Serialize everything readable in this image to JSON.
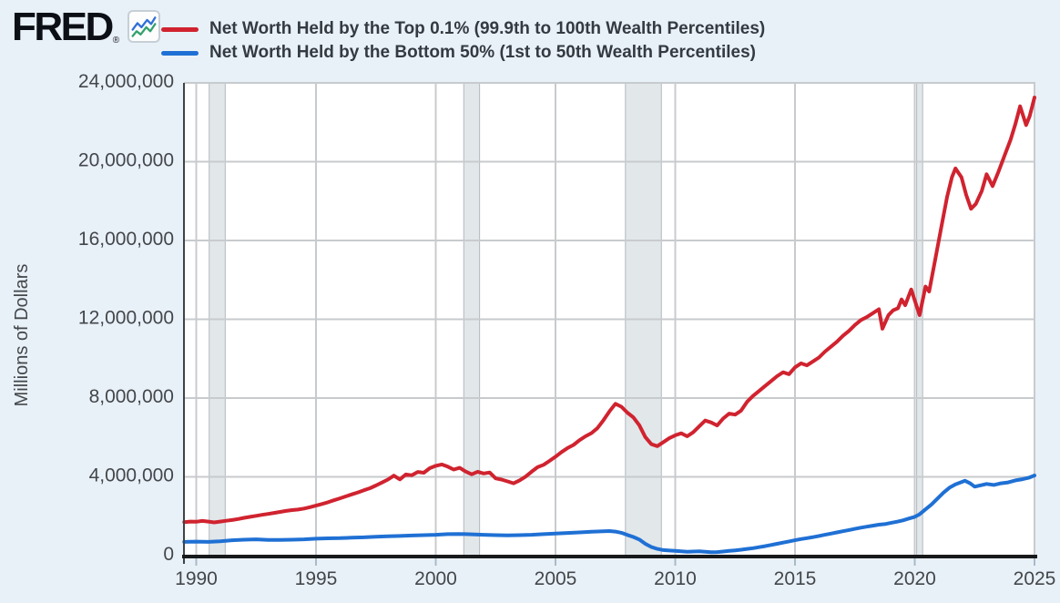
{
  "brand": {
    "name": "FRED",
    "registered": "®"
  },
  "legend": [
    {
      "id": "top_0_1",
      "label": "Net Worth Held by the Top 0.1% (99.9th to 100th Wealth Percentiles)",
      "color": "#d0232f"
    },
    {
      "id": "bottom_50",
      "label": "Net Worth Held by the Bottom 50% (1st to 50th Wealth Percentiles)",
      "color": "#1f70d4"
    }
  ],
  "colors": {
    "background": "#e9f1f8",
    "plot_background": "#ffffff",
    "gridline": "#c8cbce",
    "recession_band": "#e2e7ea",
    "recession_edge": "#b2b8be",
    "x_axis": "#17191b",
    "y_axis": "#3f4347",
    "tick_mark": "#a9bac7",
    "tick_text": "#43474b",
    "series_red": "#d0232f",
    "series_blue": "#1f70d4"
  },
  "chart_data": {
    "type": "line",
    "title": "",
    "xlabel": "",
    "ylabel": "Millions of Dollars",
    "grid": true,
    "legend_position": "top",
    "x_range": [
      1989.49,
      2025.08
    ],
    "ylim": [
      0,
      24000000
    ],
    "x_ticks": [
      {
        "v": 1990,
        "label": "1990"
      },
      {
        "v": 1995,
        "label": "1995"
      },
      {
        "v": 2000,
        "label": "2000"
      },
      {
        "v": 2005,
        "label": "2005"
      },
      {
        "v": 2010,
        "label": "2010"
      },
      {
        "v": 2015,
        "label": "2015"
      },
      {
        "v": 2020,
        "label": "2020"
      },
      {
        "v": 2025,
        "label": "2025"
      }
    ],
    "y_ticks": [
      {
        "v": 0,
        "label": "0"
      },
      {
        "v": 4000000,
        "label": "4,000,000"
      },
      {
        "v": 8000000,
        "label": "8,000,000"
      },
      {
        "v": 12000000,
        "label": "12,000,000"
      },
      {
        "v": 16000000,
        "label": "16,000,000"
      },
      {
        "v": 20000000,
        "label": "20,000,000"
      },
      {
        "v": 24000000,
        "label": "24,000,000"
      }
    ],
    "recessions": [
      [
        1990.54,
        1991.21
      ],
      [
        2001.17,
        2001.83
      ],
      [
        2007.92,
        2009.42
      ],
      [
        2020.08,
        2020.33
      ]
    ],
    "series": [
      {
        "id": "top_0_1",
        "name": "Net Worth Held by the Top 0.1% (99.9th to 100th Wealth Percentiles)",
        "color": "#d0232f",
        "points": [
          [
            1989.5,
            1700000.0
          ],
          [
            1989.75,
            1730000.0
          ],
          [
            1990.0,
            1720000.0
          ],
          [
            1990.25,
            1760000.0
          ],
          [
            1990.5,
            1730000.0
          ],
          [
            1990.75,
            1690000.0
          ],
          [
            1991.0,
            1730000.0
          ],
          [
            1991.25,
            1770000.0
          ],
          [
            1991.5,
            1810000.0
          ],
          [
            1991.75,
            1860000.0
          ],
          [
            1992.0,
            1920000.0
          ],
          [
            1992.25,
            1970000.0
          ],
          [
            1992.5,
            2020000.0
          ],
          [
            1992.75,
            2070000.0
          ],
          [
            1993.0,
            2120000.0
          ],
          [
            1993.25,
            2170000.0
          ],
          [
            1993.5,
            2220000.0
          ],
          [
            1993.75,
            2270000.0
          ],
          [
            1994.0,
            2310000.0
          ],
          [
            1994.25,
            2340000.0
          ],
          [
            1994.5,
            2390000.0
          ],
          [
            1994.75,
            2460000.0
          ],
          [
            1995.0,
            2540000.0
          ],
          [
            1995.25,
            2620000.0
          ],
          [
            1995.5,
            2710000.0
          ],
          [
            1995.75,
            2810000.0
          ],
          [
            1996.0,
            2910000.0
          ],
          [
            1996.25,
            3010000.0
          ],
          [
            1996.5,
            3110000.0
          ],
          [
            1996.75,
            3210000.0
          ],
          [
            1997.0,
            3320000.0
          ],
          [
            1997.25,
            3420000.0
          ],
          [
            1997.5,
            3560000.0
          ],
          [
            1997.75,
            3710000.0
          ],
          [
            1998.0,
            3860000.0
          ],
          [
            1998.25,
            4060000.0
          ],
          [
            1998.5,
            3870000.0
          ],
          [
            1998.75,
            4120000.0
          ],
          [
            1999.0,
            4080000.0
          ],
          [
            1999.25,
            4250000.0
          ],
          [
            1999.5,
            4210000.0
          ],
          [
            1999.75,
            4440000.0
          ],
          [
            2000.0,
            4560000.0
          ],
          [
            2000.25,
            4630000.0
          ],
          [
            2000.5,
            4520000.0
          ],
          [
            2000.75,
            4370000.0
          ],
          [
            2001.0,
            4460000.0
          ],
          [
            2001.25,
            4270000.0
          ],
          [
            2001.5,
            4130000.0
          ],
          [
            2001.75,
            4260000.0
          ],
          [
            2002.0,
            4170000.0
          ],
          [
            2002.25,
            4220000.0
          ],
          [
            2002.5,
            3920000.0
          ],
          [
            2002.75,
            3860000.0
          ],
          [
            2003.0,
            3770000.0
          ],
          [
            2003.25,
            3670000.0
          ],
          [
            2003.5,
            3820000.0
          ],
          [
            2003.75,
            4010000.0
          ],
          [
            2004.0,
            4260000.0
          ],
          [
            2004.25,
            4490000.0
          ],
          [
            2004.5,
            4610000.0
          ],
          [
            2004.75,
            4810000.0
          ],
          [
            2005.0,
            5020000.0
          ],
          [
            2005.25,
            5260000.0
          ],
          [
            2005.5,
            5460000.0
          ],
          [
            2005.75,
            5620000.0
          ],
          [
            2006.0,
            5860000.0
          ],
          [
            2006.25,
            6060000.0
          ],
          [
            2006.5,
            6220000.0
          ],
          [
            2006.75,
            6470000.0
          ],
          [
            2007.0,
            6870000.0
          ],
          [
            2007.25,
            7320000.0
          ],
          [
            2007.5,
            7710000.0
          ],
          [
            2007.75,
            7560000.0
          ],
          [
            2008.0,
            7260000.0
          ],
          [
            2008.25,
            7020000.0
          ],
          [
            2008.5,
            6620000.0
          ],
          [
            2008.75,
            6020000.0
          ],
          [
            2009.0,
            5660000.0
          ],
          [
            2009.25,
            5560000.0
          ],
          [
            2009.5,
            5760000.0
          ],
          [
            2009.75,
            5960000.0
          ],
          [
            2010.0,
            6110000.0
          ],
          [
            2010.25,
            6210000.0
          ],
          [
            2010.5,
            6060000.0
          ],
          [
            2010.75,
            6260000.0
          ],
          [
            2011.0,
            6560000.0
          ],
          [
            2011.25,
            6860000.0
          ],
          [
            2011.5,
            6760000.0
          ],
          [
            2011.75,
            6610000.0
          ],
          [
            2012.0,
            6960000.0
          ],
          [
            2012.25,
            7210000.0
          ],
          [
            2012.5,
            7160000.0
          ],
          [
            2012.75,
            7360000.0
          ],
          [
            2013.0,
            7810000.0
          ],
          [
            2013.25,
            8110000.0
          ],
          [
            2013.5,
            8360000.0
          ],
          [
            2013.75,
            8610000.0
          ],
          [
            2014.0,
            8860000.0
          ],
          [
            2014.25,
            9110000.0
          ],
          [
            2014.5,
            9310000.0
          ],
          [
            2014.75,
            9210000.0
          ],
          [
            2015.0,
            9560000.0
          ],
          [
            2015.25,
            9760000.0
          ],
          [
            2015.5,
            9660000.0
          ],
          [
            2015.75,
            9860000.0
          ],
          [
            2016.0,
            10060000.0
          ],
          [
            2016.25,
            10360000.0
          ],
          [
            2016.5,
            10610000.0
          ],
          [
            2016.75,
            10860000.0
          ],
          [
            2017.0,
            11160000.0
          ],
          [
            2017.25,
            11410000.0
          ],
          [
            2017.5,
            11710000.0
          ],
          [
            2017.75,
            11960000.0
          ],
          [
            2018.0,
            12110000.0
          ],
          [
            2018.25,
            12310000.0
          ],
          [
            2018.5,
            12510000.0
          ],
          [
            2018.65,
            11520000.0
          ],
          [
            2018.9,
            12210000.0
          ],
          [
            2019.1,
            12460000.0
          ],
          [
            2019.3,
            12560000.0
          ],
          [
            2019.45,
            13010000.0
          ],
          [
            2019.6,
            12710000.0
          ],
          [
            2019.85,
            13510000.0
          ],
          [
            2020.2,
            12210000.0
          ],
          [
            2020.45,
            13660000.0
          ],
          [
            2020.6,
            13410000.0
          ],
          [
            2020.85,
            15010000.0
          ],
          [
            2021.1,
            16610000.0
          ],
          [
            2021.35,
            18210000.0
          ],
          [
            2021.55,
            19210000.0
          ],
          [
            2021.7,
            19660000.0
          ],
          [
            2021.95,
            19210000.0
          ],
          [
            2022.15,
            18310000.0
          ],
          [
            2022.35,
            17610000.0
          ],
          [
            2022.55,
            17860000.0
          ],
          [
            2022.8,
            18510000.0
          ],
          [
            2023.0,
            19360000.0
          ],
          [
            2023.25,
            18760000.0
          ],
          [
            2023.5,
            19510000.0
          ],
          [
            2023.75,
            20310000.0
          ],
          [
            2024.0,
            21110000.0
          ],
          [
            2024.2,
            21910000.0
          ],
          [
            2024.4,
            22810000.0
          ],
          [
            2024.65,
            21860000.0
          ],
          [
            2024.8,
            22310000.0
          ],
          [
            2025.0,
            23260000.0
          ]
        ]
      },
      {
        "id": "bottom_50",
        "name": "Net Worth Held by the Bottom 50% (1st to 50th Wealth Percentiles)",
        "color": "#1f70d4",
        "points": [
          [
            1989.5,
            700000.0
          ],
          [
            1990.0,
            710000.0
          ],
          [
            1990.5,
            700000.0
          ],
          [
            1991.0,
            730000.0
          ],
          [
            1991.5,
            780000.0
          ],
          [
            1992.0,
            810000.0
          ],
          [
            1992.5,
            830000.0
          ],
          [
            1993.0,
            800000.0
          ],
          [
            1993.5,
            800000.0
          ],
          [
            1994.0,
            810000.0
          ],
          [
            1994.5,
            830000.0
          ],
          [
            1995.0,
            860000.0
          ],
          [
            1995.5,
            880000.0
          ],
          [
            1996.0,
            890000.0
          ],
          [
            1996.5,
            910000.0
          ],
          [
            1997.0,
            930000.0
          ],
          [
            1997.5,
            960000.0
          ],
          [
            1998.0,
            980000.0
          ],
          [
            1998.5,
            1000000.0
          ],
          [
            1999.0,
            1020000.0
          ],
          [
            1999.5,
            1040000.0
          ],
          [
            2000.0,
            1060000.0
          ],
          [
            2000.5,
            1090000.0
          ],
          [
            2001.0,
            1100000.0
          ],
          [
            2001.5,
            1080000.0
          ],
          [
            2002.0,
            1060000.0
          ],
          [
            2002.5,
            1040000.0
          ],
          [
            2003.0,
            1030000.0
          ],
          [
            2003.5,
            1040000.0
          ],
          [
            2004.0,
            1060000.0
          ],
          [
            2004.5,
            1090000.0
          ],
          [
            2005.0,
            1120000.0
          ],
          [
            2005.5,
            1150000.0
          ],
          [
            2006.0,
            1180000.0
          ],
          [
            2006.5,
            1210000.0
          ],
          [
            2007.0,
            1240000.0
          ],
          [
            2007.25,
            1250000.0
          ],
          [
            2007.5,
            1220000.0
          ],
          [
            2007.75,
            1160000.0
          ],
          [
            2008.0,
            1050000.0
          ],
          [
            2008.25,
            950000.0
          ],
          [
            2008.5,
            820000.0
          ],
          [
            2008.75,
            600000.0
          ],
          [
            2009.0,
            440000.0
          ],
          [
            2009.25,
            340000.0
          ],
          [
            2009.5,
            280000.0
          ],
          [
            2009.75,
            260000.0
          ],
          [
            2010.0,
            240000.0
          ],
          [
            2010.25,
            220000.0
          ],
          [
            2010.5,
            200000.0
          ],
          [
            2010.75,
            210000.0
          ],
          [
            2011.0,
            220000.0
          ],
          [
            2011.25,
            200000.0
          ],
          [
            2011.5,
            170000.0
          ],
          [
            2011.75,
            180000.0
          ],
          [
            2012.0,
            210000.0
          ],
          [
            2012.25,
            240000.0
          ],
          [
            2012.5,
            270000.0
          ],
          [
            2012.75,
            300000.0
          ],
          [
            2013.0,
            340000.0
          ],
          [
            2013.25,
            380000.0
          ],
          [
            2013.5,
            430000.0
          ],
          [
            2013.75,
            480000.0
          ],
          [
            2014.0,
            540000.0
          ],
          [
            2014.25,
            600000.0
          ],
          [
            2014.5,
            660000.0
          ],
          [
            2014.75,
            720000.0
          ],
          [
            2015.0,
            780000.0
          ],
          [
            2015.25,
            840000.0
          ],
          [
            2015.5,
            890000.0
          ],
          [
            2015.75,
            940000.0
          ],
          [
            2016.0,
            1000000.0
          ],
          [
            2016.25,
            1060000.0
          ],
          [
            2016.5,
            1120000.0
          ],
          [
            2016.75,
            1180000.0
          ],
          [
            2017.0,
            1240000.0
          ],
          [
            2017.25,
            1300000.0
          ],
          [
            2017.5,
            1360000.0
          ],
          [
            2017.75,
            1420000.0
          ],
          [
            2018.0,
            1470000.0
          ],
          [
            2018.25,
            1520000.0
          ],
          [
            2018.5,
            1570000.0
          ],
          [
            2018.75,
            1600000.0
          ],
          [
            2019.0,
            1660000.0
          ],
          [
            2019.25,
            1720000.0
          ],
          [
            2019.5,
            1790000.0
          ],
          [
            2019.75,
            1880000.0
          ],
          [
            2020.0,
            1970000.0
          ],
          [
            2020.2,
            2100000.0
          ],
          [
            2020.45,
            2350000.0
          ],
          [
            2020.7,
            2600000.0
          ],
          [
            2020.95,
            2900000.0
          ],
          [
            2021.2,
            3200000.0
          ],
          [
            2021.45,
            3450000.0
          ],
          [
            2021.7,
            3620000.0
          ],
          [
            2021.95,
            3730000.0
          ],
          [
            2022.1,
            3800000.0
          ],
          [
            2022.3,
            3680000.0
          ],
          [
            2022.5,
            3500000.0
          ],
          [
            2022.75,
            3570000.0
          ],
          [
            2023.0,
            3640000.0
          ],
          [
            2023.3,
            3590000.0
          ],
          [
            2023.6,
            3670000.0
          ],
          [
            2023.9,
            3720000.0
          ],
          [
            2024.2,
            3820000.0
          ],
          [
            2024.5,
            3880000.0
          ],
          [
            2024.75,
            3950000.0
          ],
          [
            2025.0,
            4070000.0
          ]
        ]
      }
    ]
  }
}
